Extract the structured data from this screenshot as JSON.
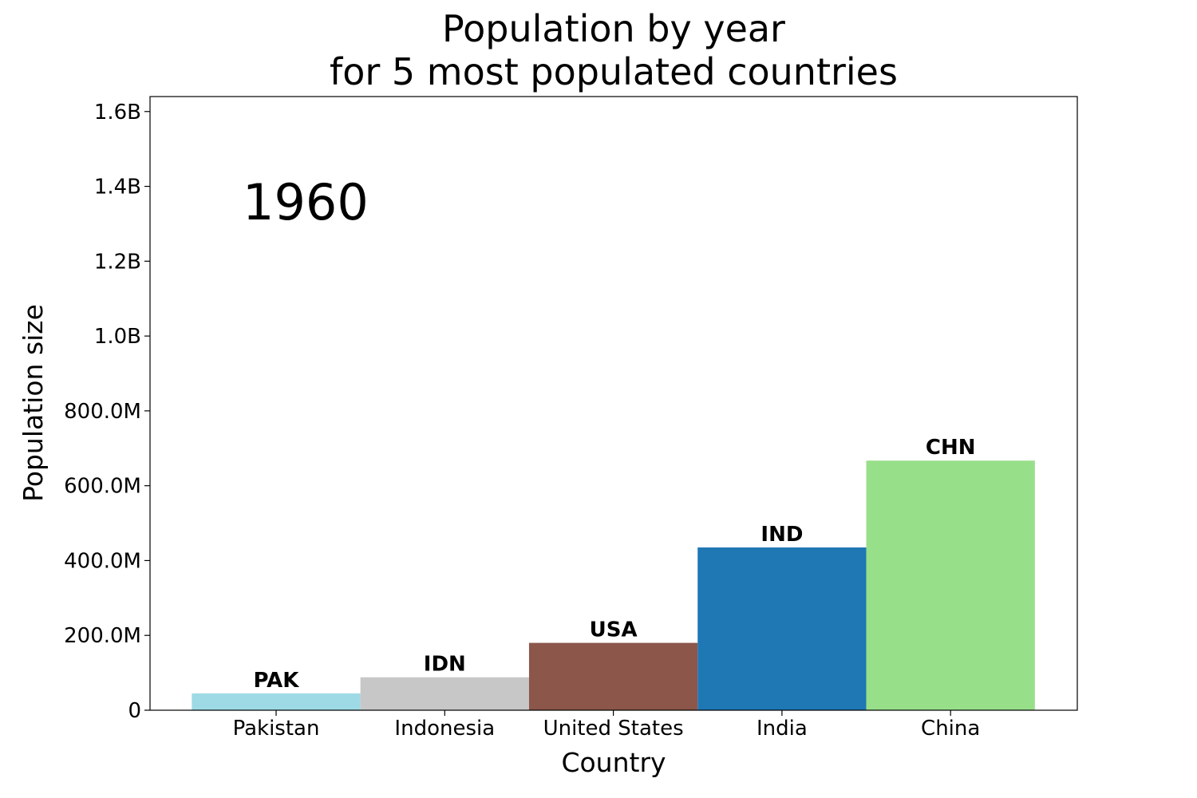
{
  "chart_data": {
    "type": "bar",
    "title": [
      "Population by year",
      "for 5 most populated countries"
    ],
    "year": "1960",
    "xlabel": "Country",
    "ylabel": "Population size",
    "categories": [
      "Pakistan",
      "Indonesia",
      "United States",
      "India",
      "China"
    ],
    "codes": [
      "PAK",
      "IDN",
      "USA",
      "IND",
      "CHN"
    ],
    "values": [
      45000000,
      88000000,
      180000000,
      435000000,
      667000000
    ],
    "colors": [
      "#9edae5",
      "#c7c7c7",
      "#8c564b",
      "#1f77b4",
      "#98df8a"
    ],
    "ylim": [
      0,
      1640000000
    ],
    "yticks": [
      0,
      200000000,
      400000000,
      600000000,
      800000000,
      1000000000,
      1200000000,
      1400000000,
      1600000000
    ],
    "ytick_labels": [
      "0",
      "200.0M",
      "400.0M",
      "600.0M",
      "800.0M",
      "1.0B",
      "1.2B",
      "1.4B",
      "1.6B"
    ],
    "grid": false,
    "legend": "none"
  }
}
